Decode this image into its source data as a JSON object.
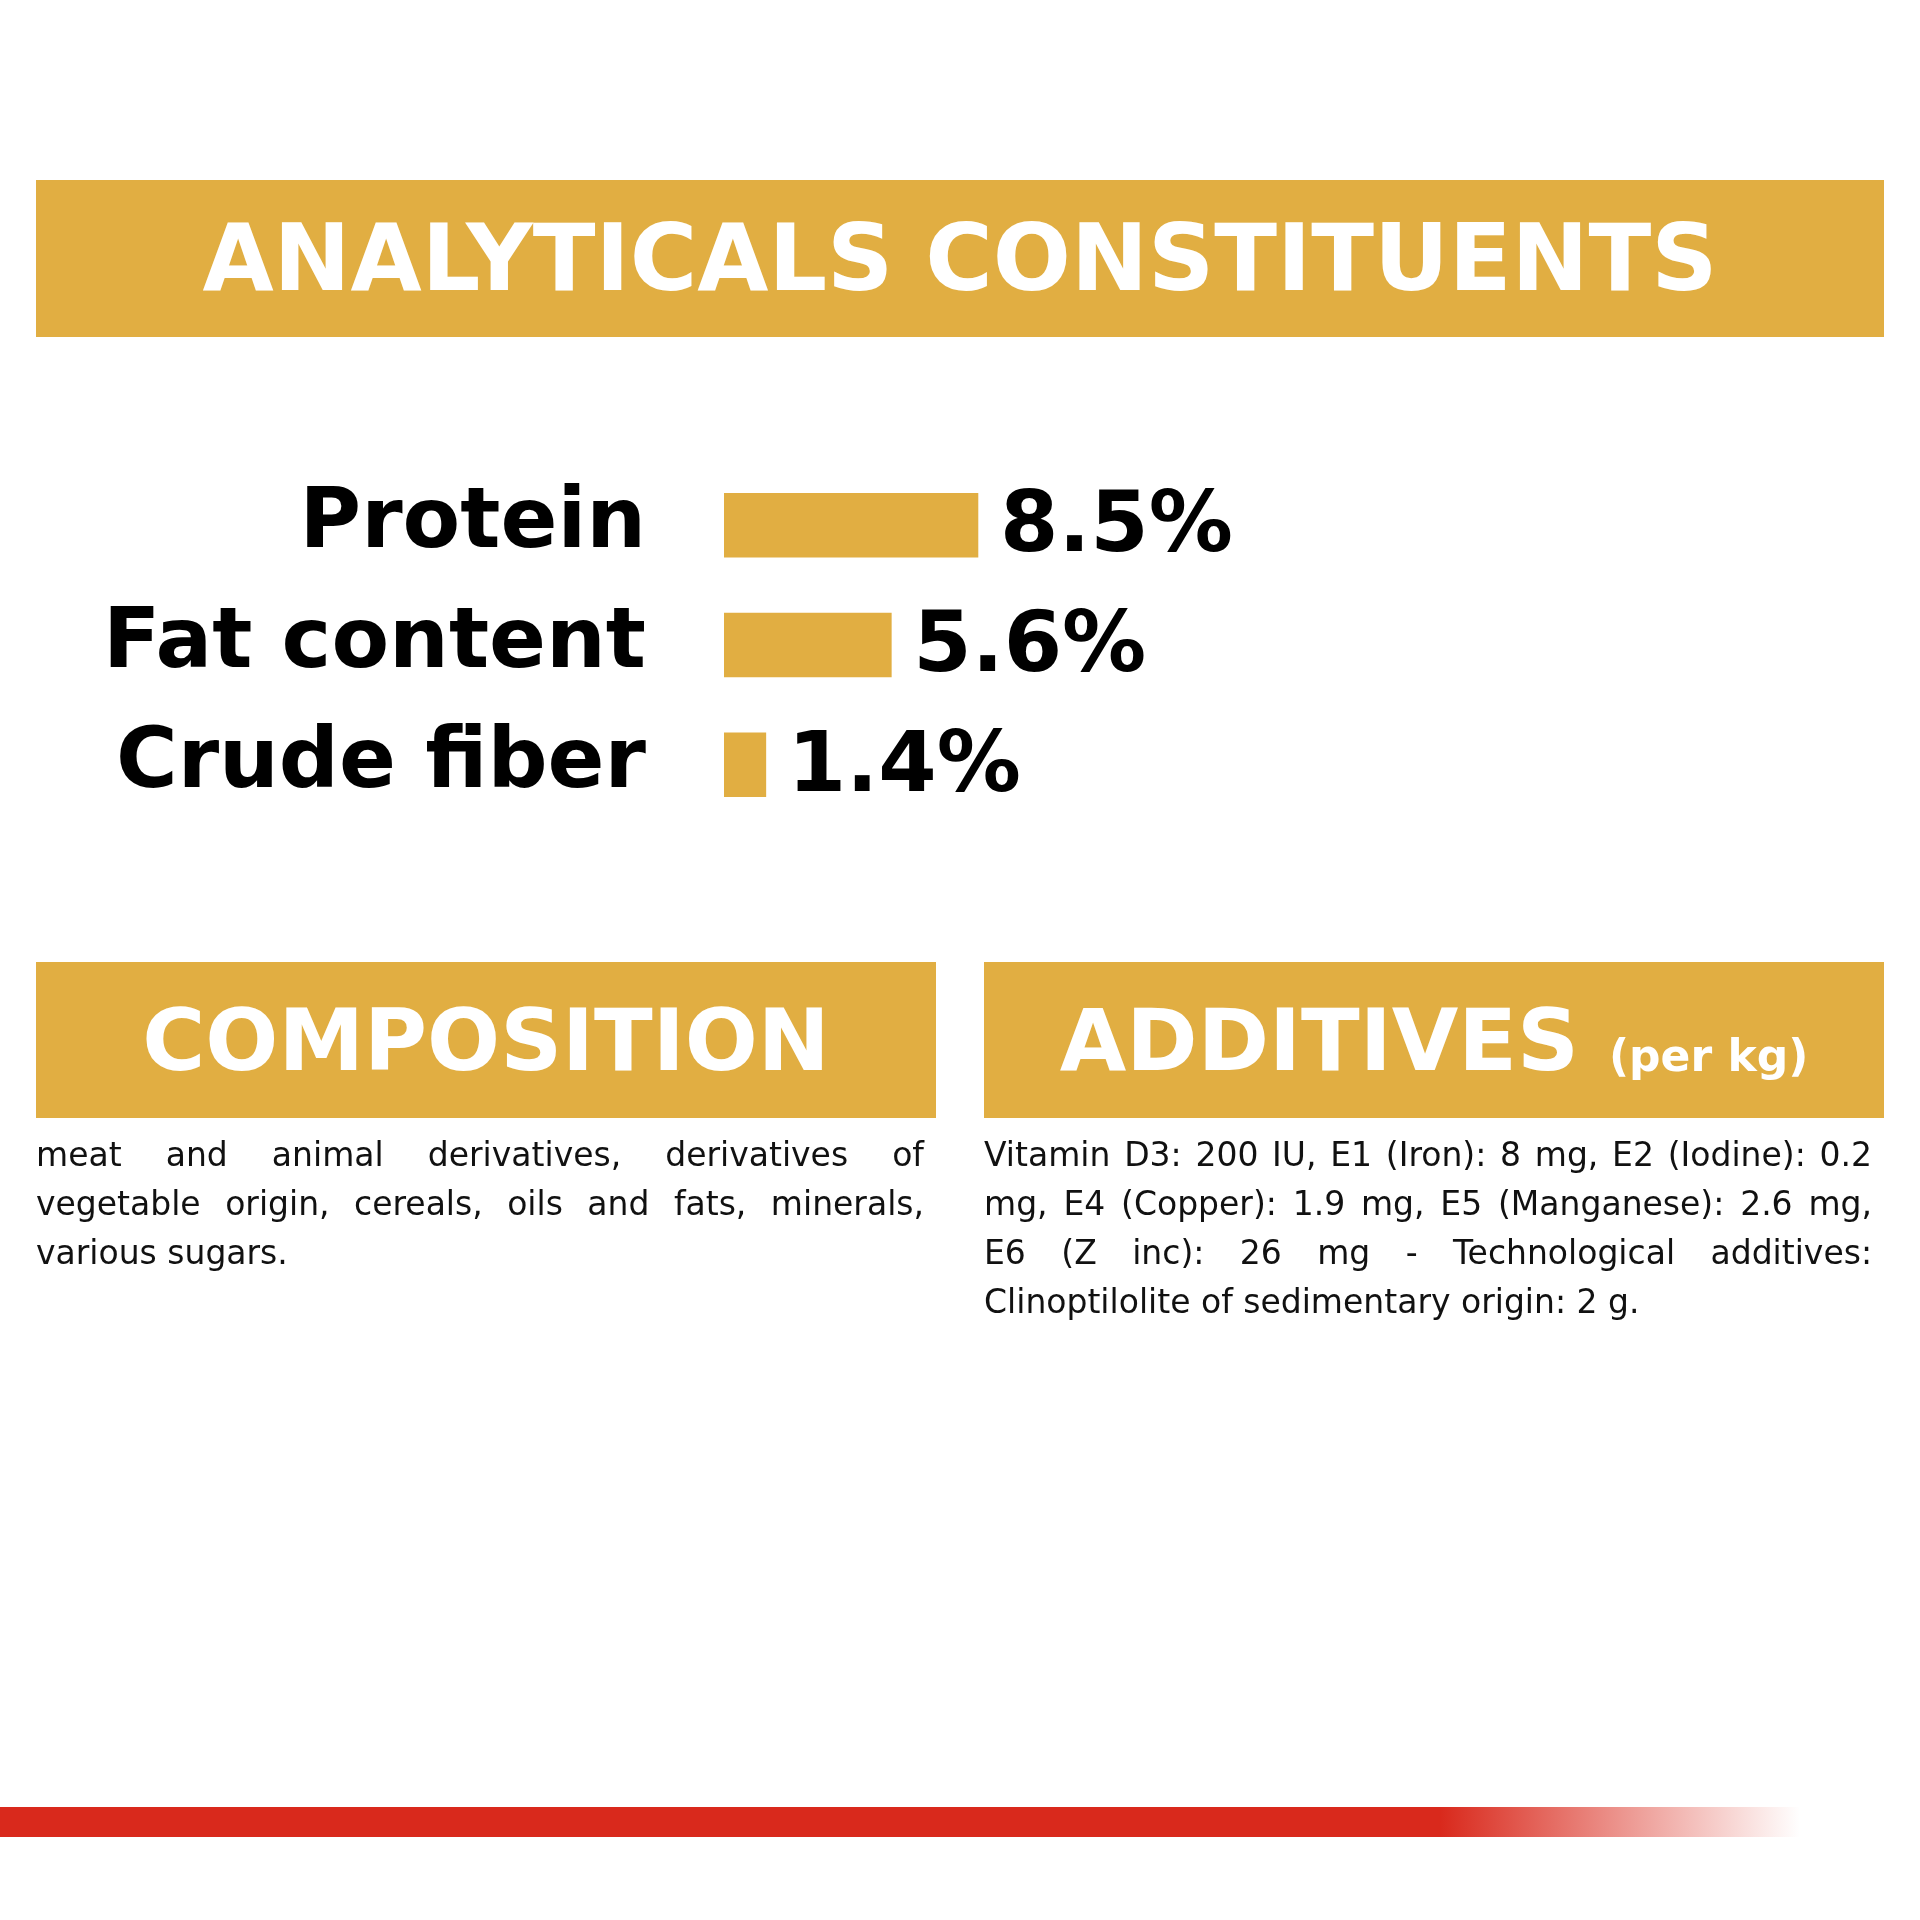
{
  "chart_data": [
    {
      "type": "bar",
      "orientation": "horizontal",
      "title": "ANALYTICALS CONSTITUENTS",
      "categories": [
        "Protein",
        "Fat content",
        "Crude fiber"
      ],
      "values": [
        8.5,
        5.6,
        1.4
      ],
      "value_labels": [
        "8.5%",
        "5.6%",
        "1.4%"
      ],
      "color": "#e1ae42",
      "legend": false,
      "grid": false
    },
    {
      "type": "other",
      "title": "COMPOSITION",
      "annotations": [
        "meat and animal derivatives, derivatives of vegetable origin, cereals, oils and fats, minerals, various sugars."
      ]
    },
    {
      "type": "other",
      "title": "ADDITIVES",
      "subtitle": "(per kg)",
      "annotations": [
        "Vitamin D3: 200 IU, E1 (Iron): 8 mg, E2 (Iodine): 0.2 mg, E4 (Copper): 1.9 mg, E5 (Manganese): 2.6 mg, E6 (Z inc): 26 mg - Technological additives: Clinoptilolite of sedimentary origin: 2 g."
      ]
    }
  ]
}
